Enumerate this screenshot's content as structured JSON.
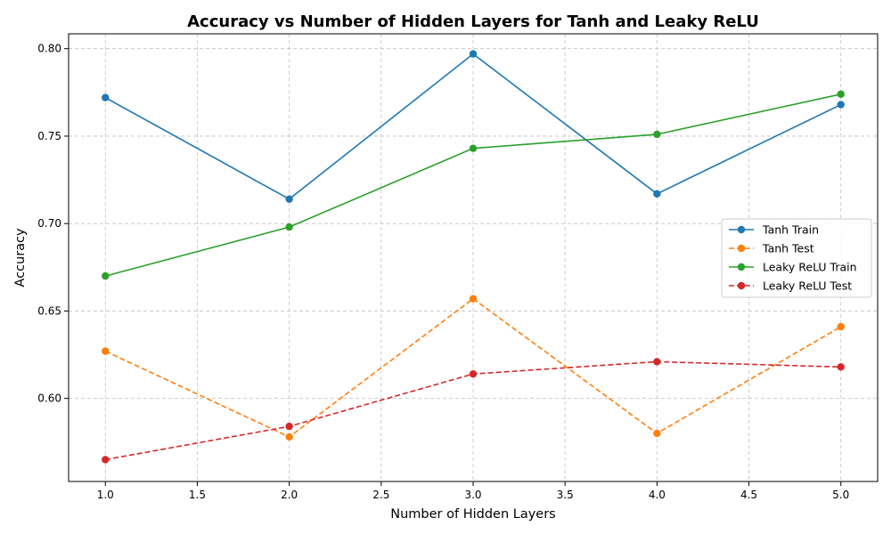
{
  "chart_data": {
    "type": "line",
    "title": "Accuracy vs Number of Hidden Layers for Tanh and Leaky ReLU",
    "xlabel": "Number of Hidden Layers",
    "ylabel": "Accuracy",
    "x": [
      1,
      2,
      3,
      4,
      5
    ],
    "xlim": [
      0.8,
      5.2
    ],
    "ylim": [
      0.5525,
      0.8085
    ],
    "xticks": [
      "1.0",
      "1.5",
      "2.0",
      "2.5",
      "3.0",
      "3.5",
      "4.0",
      "4.5",
      "5.0"
    ],
    "yticks": [
      "0.60",
      "0.65",
      "0.70",
      "0.75",
      "0.80"
    ],
    "grid": true,
    "legend_position": "center-right",
    "series": [
      {
        "name": "Tanh Train",
        "values": [
          0.772,
          0.714,
          0.797,
          0.717,
          0.768
        ],
        "color": "#1f77b4",
        "dashed": false
      },
      {
        "name": "Tanh Test",
        "values": [
          0.627,
          0.578,
          0.657,
          0.58,
          0.641
        ],
        "color": "#ff7f0e",
        "dashed": true
      },
      {
        "name": "Leaky ReLU Train",
        "values": [
          0.67,
          0.698,
          0.743,
          0.751,
          0.774
        ],
        "color": "#2ca02c",
        "dashed": false
      },
      {
        "name": "Leaky ReLU Test",
        "values": [
          0.565,
          0.584,
          0.614,
          0.621,
          0.618
        ],
        "color": "#d62728",
        "dashed": true
      }
    ]
  }
}
